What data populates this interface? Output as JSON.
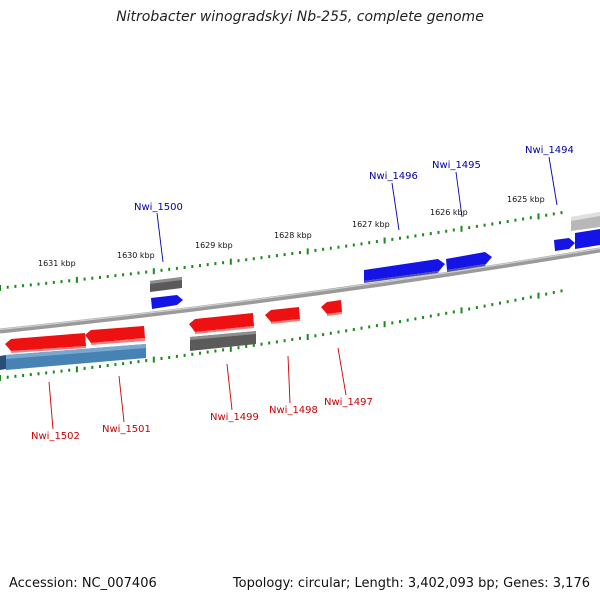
{
  "title": "Nitrobacter winogradskyi Nb-255, complete genome",
  "footer": {
    "accession": "Accession: NC_007406",
    "topology": "Topology: circular; Length: 3,402,093 bp; Genes: 3,176"
  },
  "colors": {
    "background": "#ffffff",
    "backbone": "#8a8a8a",
    "tick_green": "#1a8a1a",
    "gene_red": "#ee1111",
    "gene_blue": "#1414e6",
    "gene_gray": "#606060",
    "gene_steelblue": "#4682b4",
    "gene_lightgray": "#b8b8b8",
    "label_red": "#cc0000",
    "label_blue": "#0000aa"
  },
  "ticks": [
    "1625 kbp",
    "1626 kbp",
    "1627 kbp",
    "1628 kbp",
    "1629 kbp",
    "1630 kbp",
    "1631 kbp"
  ],
  "genes": [
    {
      "label": "Nwi_1494",
      "strand": "+",
      "type": "CDS",
      "color": "gene_blue"
    },
    {
      "label": "Nwi_1495",
      "strand": "+",
      "type": "CDS",
      "color": "gene_blue"
    },
    {
      "label": "Nwi_1496",
      "strand": "+",
      "type": "CDS",
      "color": "gene_blue"
    },
    {
      "label": "Nwi_1497",
      "strand": "-",
      "type": "CDS",
      "color": "gene_red"
    },
    {
      "label": "Nwi_1498",
      "strand": "-",
      "type": "CDS",
      "color": "gene_red"
    },
    {
      "label": "Nwi_1499",
      "strand": "-",
      "type": "CDS",
      "color": "gene_red"
    },
    {
      "label": "Nwi_1500",
      "strand": "+",
      "type": "CDS",
      "color": "gene_blue"
    },
    {
      "label": "Nwi_1501",
      "strand": "-",
      "type": "CDS",
      "color": "gene_red"
    },
    {
      "label": "Nwi_1502",
      "strand": "-",
      "type": "CDS",
      "color": "gene_red"
    }
  ]
}
